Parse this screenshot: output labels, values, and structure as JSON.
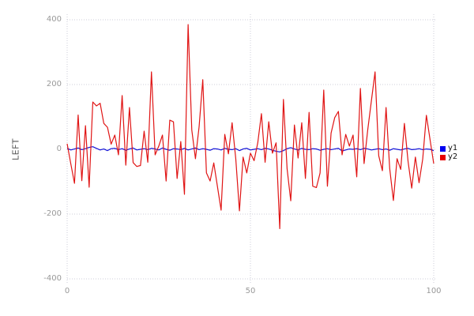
{
  "chart_data": {
    "type": "line",
    "title": "",
    "ylabel": "LEFT",
    "xlabel": "",
    "xlim": [
      0,
      100
    ],
    "ylim": [
      -400,
      400
    ],
    "x_ticks": [
      0,
      50,
      100
    ],
    "y_ticks": [
      400,
      200,
      0,
      -200,
      -400
    ],
    "grid": "dotted",
    "grid_color": "#ccccd8",
    "legend_position": "outside-right",
    "x_start": 0,
    "x_step": 1,
    "series": [
      {
        "name": "y1",
        "color": "#1212d6",
        "swatch_color": "#0000f0",
        "values": [
          3,
          -2,
          1,
          4,
          -1,
          2,
          6,
          8,
          3,
          -2,
          1,
          -4,
          2,
          3,
          -1,
          2,
          -3,
          1,
          4,
          -2,
          0,
          2,
          -1,
          3,
          1,
          -2,
          4,
          0,
          -3,
          2,
          1,
          -1,
          3,
          -2,
          1,
          4,
          -1,
          2,
          0,
          -3,
          2,
          1,
          -2,
          3,
          0,
          -1,
          2,
          -4,
          1,
          3,
          -2,
          0,
          2,
          -1,
          3,
          1,
          -3,
          -6,
          -8,
          -4,
          2,
          5,
          1,
          -2,
          3,
          0,
          -1,
          2,
          1,
          -3,
          0,
          2,
          -1,
          1,
          3,
          -5,
          -2,
          1,
          0,
          2,
          -1,
          3,
          1,
          -2,
          0,
          2,
          -1,
          1,
          -3,
          2,
          0,
          -2,
          1,
          3,
          -1,
          0,
          2,
          -1,
          1,
          0,
          -4
        ]
      },
      {
        "name": "y2",
        "color": "#e01414",
        "swatch_color": "#e80000",
        "values": [
          17,
          -45,
          -105,
          106,
          -97,
          73,
          -117,
          146,
          134,
          142,
          80,
          68,
          16,
          44,
          -17,
          166,
          -49,
          129,
          -41,
          -53,
          -50,
          56,
          -40,
          239,
          -17,
          10,
          44,
          -98,
          90,
          85,
          -90,
          24,
          -139,
          385,
          60,
          -29,
          70,
          215,
          -73,
          -98,
          -42,
          -115,
          -188,
          46,
          -14,
          82,
          -29,
          -190,
          -24,
          -73,
          -12,
          -35,
          20,
          110,
          -40,
          85,
          -12,
          20,
          -245,
          154,
          -60,
          -159,
          75,
          -27,
          82,
          -90,
          114,
          -114,
          -118,
          -73,
          183,
          -114,
          50,
          98,
          117,
          -17,
          46,
          10,
          44,
          -85,
          188,
          -44,
          60,
          150,
          239,
          -20,
          -66,
          129,
          -60,
          -158,
          -29,
          -62,
          80,
          -37,
          -120,
          -24,
          -103,
          -30,
          105,
          30,
          -44
        ]
      }
    ]
  },
  "axis_text_color": "#999999",
  "ylabel_color": "#555555"
}
